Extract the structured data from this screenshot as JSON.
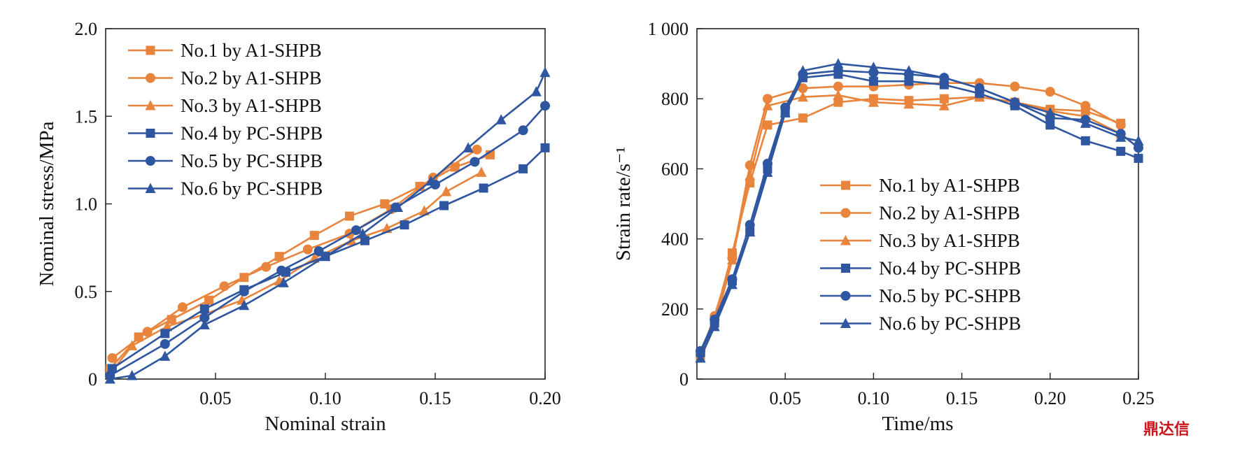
{
  "watermark": "鼎达信",
  "chart_data": [
    {
      "type": "line",
      "xlabel": "Nominal strain",
      "ylabel": "Nominal stress/MPa",
      "xlim": [
        0,
        0.2
      ],
      "ylim": [
        0,
        2.0
      ],
      "xticks": [
        0.05,
        0.1,
        0.15,
        0.2
      ],
      "xtick_labels": [
        "0.05",
        "0.10",
        "0.15",
        "0.20"
      ],
      "yticks": [
        0,
        0.5,
        1.0,
        1.5,
        2.0
      ],
      "ytick_labels": [
        "0",
        "0.5",
        "1.0",
        "1.5",
        "2.0"
      ],
      "grid": false,
      "legend_position": "top-left",
      "series": [
        {
          "name": "No.1 by A1-SHPB",
          "color": "#e8843c",
          "marker": "square",
          "x": [
            0.002,
            0.015,
            0.03,
            0.047,
            0.063,
            0.079,
            0.095,
            0.111,
            0.127,
            0.143,
            0.159,
            0.175
          ],
          "y": [
            0.06,
            0.24,
            0.34,
            0.45,
            0.58,
            0.7,
            0.82,
            0.93,
            1.0,
            1.1,
            1.21,
            1.28
          ]
        },
        {
          "name": "No.2 by A1-SHPB",
          "color": "#e8843c",
          "marker": "circle",
          "x": [
            0.003,
            0.019,
            0.035,
            0.054,
            0.073,
            0.092,
            0.111,
            0.13,
            0.149,
            0.169
          ],
          "y": [
            0.12,
            0.27,
            0.41,
            0.53,
            0.64,
            0.74,
            0.83,
            0.97,
            1.15,
            1.31
          ]
        },
        {
          "name": "No.3 by A1-SHPB",
          "color": "#e8843c",
          "marker": "triangle",
          "x": [
            0.002,
            0.012,
            0.028,
            0.045,
            0.062,
            0.079,
            0.095,
            0.112,
            0.128,
            0.145,
            0.155,
            0.171
          ],
          "y": [
            0.03,
            0.19,
            0.3,
            0.37,
            0.45,
            0.56,
            0.69,
            0.79,
            0.86,
            0.96,
            1.07,
            1.18
          ]
        },
        {
          "name": "No.4 by PC-SHPB",
          "color": "#2f56a0",
          "marker": "square",
          "x": [
            0.003,
            0.027,
            0.045,
            0.063,
            0.082,
            0.1,
            0.118,
            0.136,
            0.154,
            0.172,
            0.19,
            0.2
          ],
          "y": [
            0.06,
            0.26,
            0.4,
            0.51,
            0.61,
            0.7,
            0.79,
            0.88,
            0.99,
            1.09,
            1.2,
            1.32
          ]
        },
        {
          "name": "No.5 by PC-SHPB",
          "color": "#2f56a0",
          "marker": "circle",
          "x": [
            0.002,
            0.027,
            0.045,
            0.063,
            0.08,
            0.097,
            0.114,
            0.132,
            0.15,
            0.168,
            0.19,
            0.2
          ],
          "y": [
            0.02,
            0.2,
            0.35,
            0.5,
            0.62,
            0.73,
            0.85,
            0.98,
            1.11,
            1.24,
            1.42,
            1.56
          ]
        },
        {
          "name": "No.6 by PC-SHPB",
          "color": "#2f56a0",
          "marker": "triangle",
          "x": [
            0.002,
            0.012,
            0.027,
            0.045,
            0.063,
            0.081,
            0.1,
            0.117,
            0.133,
            0.148,
            0.165,
            0.18,
            0.196,
            0.2
          ],
          "y": [
            0.0,
            0.02,
            0.13,
            0.31,
            0.42,
            0.55,
            0.7,
            0.83,
            0.98,
            1.13,
            1.32,
            1.48,
            1.64,
            1.75
          ]
        }
      ]
    },
    {
      "type": "line",
      "xlabel": "Time/ms",
      "ylabel": "Strain rate/s⁻¹",
      "xlim": [
        0,
        0.25
      ],
      "ylim": [
        0,
        1000
      ],
      "xticks": [
        0.05,
        0.1,
        0.15,
        0.2,
        0.25
      ],
      "xtick_labels": [
        "0.05",
        "0.10",
        "0.15",
        "0.20",
        "0.25"
      ],
      "yticks": [
        0,
        200,
        400,
        600,
        800,
        1000
      ],
      "ytick_labels": [
        "0",
        "200",
        "400",
        "600",
        "800",
        "1 000"
      ],
      "grid": false,
      "legend_position": "center-right",
      "series": [
        {
          "name": "No.1 by A1-SHPB",
          "color": "#e8843c",
          "marker": "square",
          "x": [
            0.002,
            0.01,
            0.02,
            0.03,
            0.04,
            0.06,
            0.08,
            0.1,
            0.12,
            0.14,
            0.16,
            0.18,
            0.2,
            0.22,
            0.24
          ],
          "y": [
            60,
            170,
            360,
            560,
            725,
            745,
            790,
            800,
            795,
            800,
            805,
            790,
            770,
            765,
            730
          ]
        },
        {
          "name": "No.2 by A1-SHPB",
          "color": "#e8843c",
          "marker": "circle",
          "x": [
            0.002,
            0.01,
            0.02,
            0.03,
            0.04,
            0.06,
            0.08,
            0.1,
            0.12,
            0.14,
            0.16,
            0.18,
            0.2,
            0.22,
            0.24
          ],
          "y": [
            70,
            180,
            345,
            610,
            800,
            830,
            835,
            835,
            840,
            845,
            845,
            835,
            820,
            780,
            725
          ]
        },
        {
          "name": "No.3 by A1-SHPB",
          "color": "#e8843c",
          "marker": "triangle",
          "x": [
            0.002,
            0.01,
            0.02,
            0.03,
            0.04,
            0.06,
            0.08,
            0.1,
            0.12,
            0.14,
            0.16,
            0.18,
            0.2,
            0.22,
            0.24
          ],
          "y": [
            60,
            150,
            340,
            580,
            780,
            805,
            810,
            790,
            785,
            780,
            805,
            790,
            765,
            750,
            700
          ]
        },
        {
          "name": "No.4 by PC-SHPB",
          "color": "#2f56a0",
          "marker": "square",
          "x": [
            0.002,
            0.01,
            0.02,
            0.03,
            0.04,
            0.05,
            0.06,
            0.08,
            0.1,
            0.12,
            0.14,
            0.16,
            0.18,
            0.2,
            0.22,
            0.24,
            0.25
          ],
          "y": [
            75,
            160,
            280,
            420,
            600,
            760,
            860,
            870,
            850,
            850,
            840,
            815,
            780,
            725,
            680,
            650,
            630
          ]
        },
        {
          "name": "No.5 by PC-SHPB",
          "color": "#2f56a0",
          "marker": "circle",
          "x": [
            0.002,
            0.01,
            0.02,
            0.03,
            0.04,
            0.05,
            0.06,
            0.08,
            0.1,
            0.12,
            0.14,
            0.16,
            0.18,
            0.2,
            0.22,
            0.24,
            0.25
          ],
          "y": [
            80,
            170,
            285,
            440,
            615,
            775,
            870,
            880,
            875,
            870,
            860,
            830,
            790,
            745,
            740,
            700,
            660
          ]
        },
        {
          "name": "No.6 by PC-SHPB",
          "color": "#2f56a0",
          "marker": "triangle",
          "x": [
            0.002,
            0.01,
            0.02,
            0.03,
            0.04,
            0.05,
            0.06,
            0.08,
            0.1,
            0.12,
            0.14,
            0.16,
            0.18,
            0.2,
            0.22,
            0.24,
            0.25
          ],
          "y": [
            60,
            150,
            270,
            420,
            590,
            760,
            880,
            900,
            890,
            880,
            860,
            830,
            790,
            760,
            730,
            690,
            680
          ]
        }
      ]
    }
  ]
}
